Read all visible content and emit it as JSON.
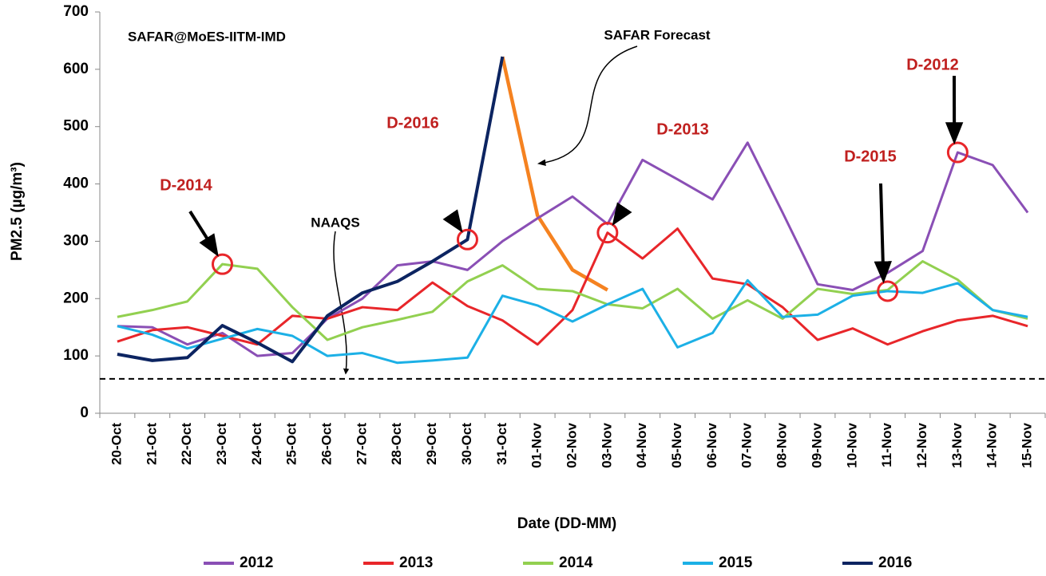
{
  "chart_data": {
    "type": "line",
    "title": "SAFAR@MoES-IITM-IMD",
    "x_label": "Date (DD-MM)",
    "y_label": "PM2.5 (µg/m³)",
    "categories": [
      "20-Oct",
      "21-Oct",
      "22-Oct",
      "23-Oct",
      "24-Oct",
      "25-Oct",
      "26-Oct",
      "27-Oct",
      "28-Oct",
      "29-Oct",
      "30-Oct",
      "31-Oct",
      "01-Nov",
      "02-Nov",
      "03-Nov",
      "04-Nov",
      "05-Nov",
      "06-Nov",
      "07-Nov",
      "08-Nov",
      "09-Nov",
      "10-Nov",
      "11-Nov",
      "12-Nov",
      "13-Nov",
      "14-Nov",
      "15-Nov"
    ],
    "series": [
      {
        "name": "2012",
        "color": "#8a4fb5",
        "values": [
          152,
          150,
          120,
          140,
          100,
          105,
          165,
          200,
          258,
          265,
          250,
          300,
          340,
          378,
          330,
          442,
          408,
          373,
          472,
          350,
          225,
          215,
          245,
          283,
          455,
          433,
          350
        ]
      },
      {
        "name": "2013",
        "color": "#e8262a",
        "values": [
          125,
          145,
          150,
          135,
          120,
          170,
          165,
          185,
          180,
          228,
          187,
          162,
          120,
          180,
          315,
          270,
          322,
          235,
          225,
          185,
          128,
          148,
          120,
          143,
          162,
          170,
          152
        ]
      },
      {
        "name": "2014",
        "color": "#92d050",
        "values": [
          168,
          180,
          195,
          260,
          252,
          185,
          128,
          150,
          163,
          177,
          230,
          258,
          217,
          213,
          190,
          183,
          217,
          165,
          197,
          165,
          217,
          208,
          215,
          265,
          233,
          180,
          165
        ]
      },
      {
        "name": "2015",
        "color": "#1cb0e6",
        "values": [
          152,
          137,
          113,
          130,
          147,
          135,
          100,
          105,
          88,
          92,
          97,
          205,
          188,
          160,
          190,
          217,
          115,
          140,
          232,
          168,
          172,
          205,
          213,
          210,
          227,
          180,
          168
        ]
      },
      {
        "name": "2016",
        "color": "#0c2461",
        "values": [
          103,
          92,
          97,
          153,
          123,
          90,
          170,
          210,
          230,
          265,
          303,
          622,
          null,
          null,
          null,
          null,
          null,
          null,
          null,
          null,
          null,
          null,
          null,
          null,
          null,
          null,
          null
        ]
      }
    ],
    "forecast": {
      "text": "SAFAR Forecast",
      "color": "#f58220",
      "values": [
        null,
        null,
        null,
        null,
        null,
        null,
        null,
        null,
        null,
        null,
        null,
        622,
        345,
        250,
        215,
        null,
        null,
        null,
        null,
        null,
        null,
        null,
        null,
        null,
        null,
        null,
        null
      ]
    },
    "reference_line": {
      "text": "NAAQS",
      "value": 60
    },
    "annotations": [
      {
        "text": "D-2014",
        "x": "23-Oct",
        "series": "2014"
      },
      {
        "text": "D-2016",
        "x": "30-Oct",
        "series": "2016"
      },
      {
        "text": "D-2013",
        "x": "03-Nov",
        "series": "2013"
      },
      {
        "text": "D-2015",
        "x": "11-Nov",
        "series": "2015"
      },
      {
        "text": "D-2012",
        "x": "13-Nov",
        "series": "2012"
      }
    ],
    "ylim": [
      0,
      700
    ],
    "yticks": [
      0,
      100,
      200,
      300,
      400,
      500,
      600,
      700
    ],
    "legend": "bottom"
  }
}
